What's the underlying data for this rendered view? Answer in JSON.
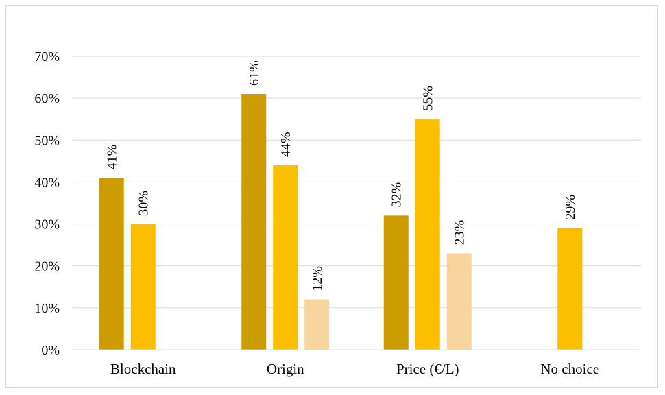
{
  "chart_data": {
    "type": "bar",
    "title": "",
    "xlabel": "",
    "ylabel": "",
    "categories": [
      "Blockchain",
      "Origin",
      "Price (€/L)",
      "No choice"
    ],
    "series": [
      {
        "values": [
          41,
          61,
          32,
          null
        ],
        "color": "#cc9c00",
        "labels": [
          "41%",
          "61%",
          "32%",
          null
        ]
      },
      {
        "values": [
          30,
          44,
          55,
          29
        ],
        "color": "#fbbf00",
        "labels": [
          "30%",
          "44%",
          "55%",
          "29%"
        ]
      },
      {
        "values": [
          null,
          12,
          23,
          null
        ],
        "color": "#f9d59e",
        "labels": [
          null,
          "12%",
          "23%",
          null
        ]
      }
    ],
    "ylim": [
      0,
      70
    ],
    "yticks": [
      0,
      10,
      20,
      30,
      40,
      50,
      60,
      70
    ],
    "ytick_labels": [
      "0%",
      "10%",
      "20%",
      "30%",
      "40%",
      "50%",
      "60%",
      "70%"
    ],
    "grid": true,
    "legend": "none"
  }
}
